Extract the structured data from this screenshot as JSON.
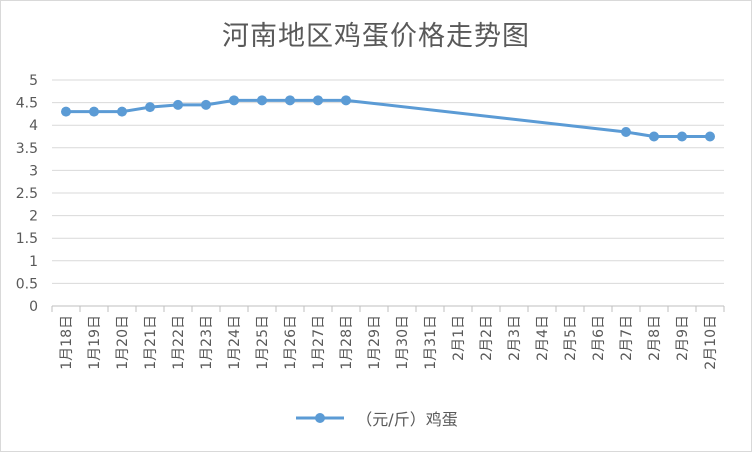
{
  "chart_data": {
    "type": "line",
    "title": "河南地区鸡蛋价格走势图",
    "xlabel": "",
    "ylabel": "",
    "ylim": [
      0,
      5
    ],
    "yticks": [
      0,
      0.5,
      1,
      1.5,
      2,
      2.5,
      3,
      3.5,
      4,
      4.5,
      5
    ],
    "categories": [
      "1月18日",
      "1月19日",
      "1月20日",
      "1月21日",
      "1月22日",
      "1月23日",
      "1月24日",
      "1月25日",
      "1月26日",
      "1月27日",
      "1月28日",
      "1月29日",
      "1月30日",
      "1月31日",
      "2月1日",
      "2月2日",
      "2月3日",
      "2月4日",
      "2月5日",
      "2月6日",
      "2月7日",
      "2月8日",
      "2月9日",
      "2月10日"
    ],
    "series": [
      {
        "name": "（元/斤）鸡蛋",
        "color": "#5b9bd5",
        "values": [
          4.3,
          4.3,
          4.3,
          4.4,
          4.45,
          4.45,
          4.55,
          4.55,
          4.55,
          4.55,
          4.55,
          null,
          null,
          null,
          null,
          null,
          null,
          null,
          null,
          null,
          3.85,
          3.75,
          3.75,
          3.75
        ]
      }
    ],
    "grid": true,
    "legend_position": "bottom"
  }
}
